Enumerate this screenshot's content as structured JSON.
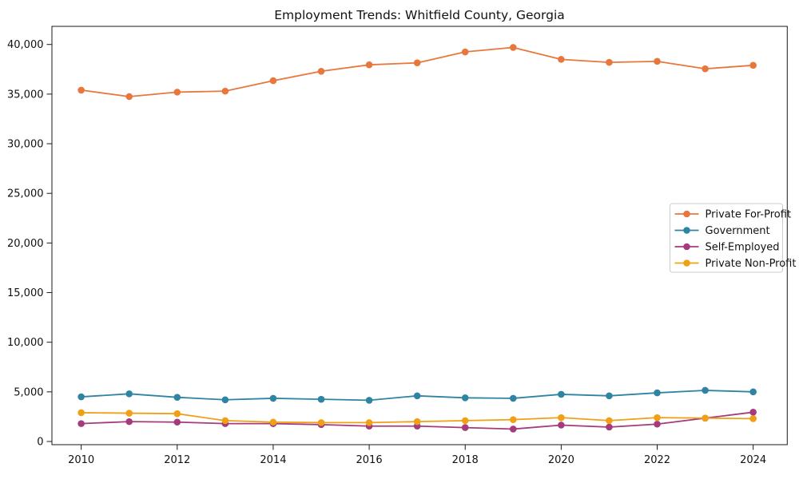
{
  "chart_data": {
    "type": "line",
    "title": "Employment Trends: Whitfield County, Georgia",
    "xlabel": "",
    "ylabel": "",
    "x": [
      2010,
      2011,
      2012,
      2013,
      2014,
      2015,
      2016,
      2017,
      2018,
      2019,
      2020,
      2021,
      2022,
      2023,
      2024
    ],
    "x_tick_labels": [
      "2010",
      "2012",
      "2014",
      "2016",
      "2018",
      "2020",
      "2022",
      "2024"
    ],
    "x_tick_values": [
      2010,
      2012,
      2014,
      2016,
      2018,
      2020,
      2022,
      2024
    ],
    "y_tick_values": [
      0,
      5000,
      10000,
      15000,
      20000,
      25000,
      30000,
      35000,
      40000
    ],
    "y_tick_labels": [
      "0",
      "5,000",
      "10,000",
      "15,000",
      "20,000",
      "25,000",
      "30,000",
      "35,000",
      "40,000"
    ],
    "xlim": [
      2009.39,
      2024.71
    ],
    "ylim": [
      -322,
      41827
    ],
    "grid": false,
    "legend_position": "center right",
    "series": [
      {
        "name": "Private For-Profit",
        "color": "#e8773d",
        "marker": "circle",
        "values": [
          35400,
          34750,
          35200,
          35300,
          36350,
          37300,
          37950,
          38150,
          39250,
          39700,
          38500,
          38200,
          38300,
          37550,
          37900
        ]
      },
      {
        "name": "Government",
        "color": "#2e84a2",
        "marker": "circle",
        "values": [
          4500,
          4800,
          4450,
          4200,
          4350,
          4250,
          4150,
          4600,
          4400,
          4350,
          4750,
          4600,
          4900,
          5150,
          5000
        ]
      },
      {
        "name": "Self-Employed",
        "color": "#a53a7c",
        "marker": "circle",
        "values": [
          1800,
          2000,
          1950,
          1800,
          1800,
          1700,
          1550,
          1550,
          1400,
          1250,
          1650,
          1450,
          1750,
          2350,
          2950
        ]
      },
      {
        "name": "Private Non-Profit",
        "color": "#efa014",
        "marker": "circle",
        "values": [
          2900,
          2850,
          2800,
          2100,
          1950,
          1900,
          1900,
          2000,
          2100,
          2200,
          2400,
          2100,
          2400,
          2350,
          2300
        ]
      }
    ]
  }
}
